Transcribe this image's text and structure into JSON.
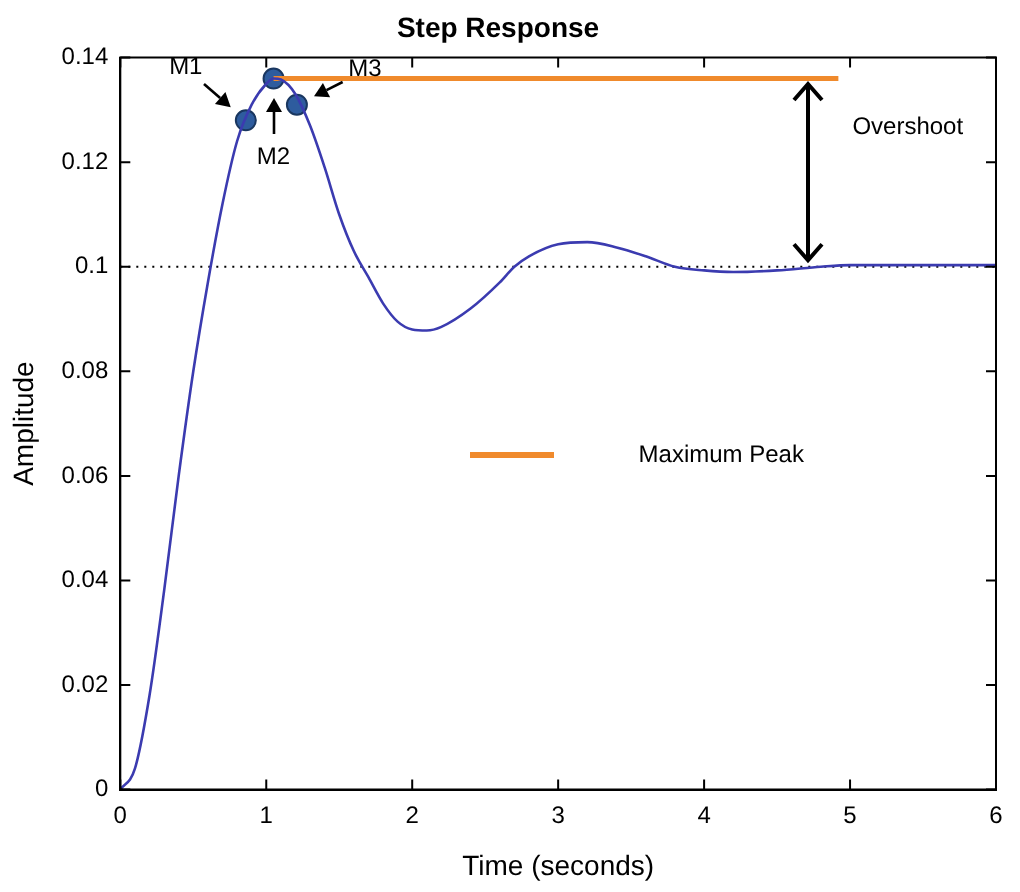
{
  "chart_data": {
    "type": "line",
    "title": "Step Response",
    "xlabel": "Time (seconds)",
    "ylabel": "Amplitude",
    "xlim": [
      0,
      6
    ],
    "xticks": [
      0,
      1,
      2,
      3,
      4,
      5,
      6
    ],
    "ylim": [
      0,
      0.14
    ],
    "yticks": [
      0,
      0.02,
      0.04,
      0.06,
      0.08,
      0.1,
      0.12,
      0.14
    ],
    "grid": false,
    "legend": "right",
    "marker": "none",
    "line_style": "solid",
    "series": [
      {
        "color": "#3b3bb0",
        "x": [
          0,
          0.1,
          0.2,
          0.3,
          0.4,
          0.5,
          0.6,
          0.7,
          0.8,
          0.9,
          1.0,
          1.05,
          1.1,
          1.2,
          1.3,
          1.4,
          1.5,
          1.6,
          1.7,
          1.8,
          1.9,
          2.0,
          2.1,
          2.2,
          2.4,
          2.6,
          2.7,
          2.8,
          3.0,
          3.2,
          3.4,
          3.6,
          3.8,
          4.0,
          4.2,
          4.5,
          4.8,
          5.0,
          5.5,
          6.0
        ],
        "values": [
          0,
          0.004,
          0.018,
          0.038,
          0.06,
          0.08,
          0.097,
          0.112,
          0.124,
          0.131,
          0.135,
          0.136,
          0.1358,
          0.133,
          0.127,
          0.119,
          0.11,
          0.103,
          0.098,
          0.093,
          0.0895,
          0.088,
          0.0878,
          0.0885,
          0.092,
          0.097,
          0.1,
          0.102,
          0.1043,
          0.1047,
          0.1037,
          0.102,
          0.1,
          0.0993,
          0.099,
          0.0993,
          0.1,
          0.1003,
          0.1003,
          0.1003
        ]
      },
      {
        "type": "line",
        "name": "Maximum Peak",
        "color": "#f08a2c",
        "x": [
          1.05,
          4.92
        ],
        "values": [
          0.136,
          0.136
        ]
      },
      {
        "type": "scatter",
        "color": "#2e5c9e",
        "marker": "circle",
        "x": [
          0.86,
          1.05,
          1.21
        ],
        "values": [
          0.128,
          0.136,
          0.131
        ]
      }
    ],
    "ref_lines": [
      {
        "axis": "y",
        "value": 0.1,
        "color": "#000000",
        "line_style": "dotted"
      }
    ],
    "annotations": [
      {
        "text": "M1",
        "x": 0.86,
        "y": 0.128
      },
      {
        "text": "M2",
        "x": 1.05,
        "y": 0.136
      },
      {
        "text": "M3",
        "x": 1.21,
        "y": 0.131
      },
      "Overshoot"
    ]
  }
}
